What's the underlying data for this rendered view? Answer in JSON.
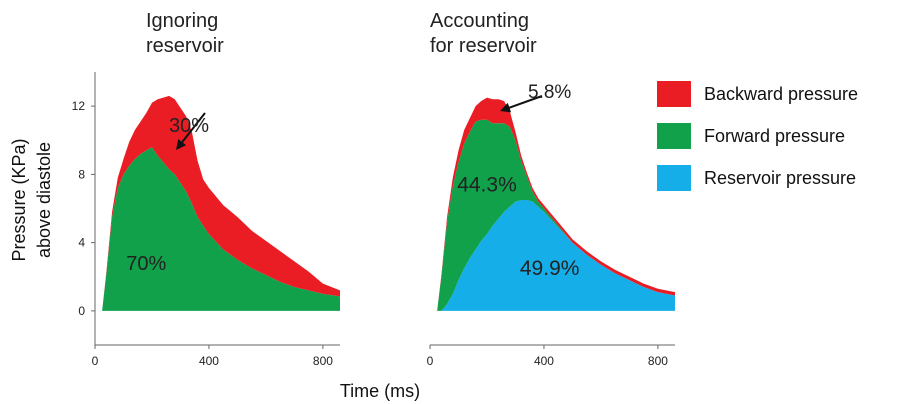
{
  "chart_data": [
    {
      "type": "area",
      "title_lines": [
        "Ignoring",
        "reservoir"
      ],
      "xlabel": "Time (ms)",
      "ylabel_lines": [
        "Pressure (KPa)",
        "above diastole"
      ],
      "xlim": [
        0,
        860
      ],
      "ylim": [
        -2,
        14
      ],
      "xticks": [
        0,
        400,
        800
      ],
      "yticks": [
        0,
        4,
        8,
        12
      ],
      "x": [
        25,
        40,
        60,
        80,
        100,
        120,
        140,
        160,
        180,
        200,
        220,
        240,
        260,
        280,
        300,
        320,
        340,
        360,
        380,
        400,
        450,
        500,
        550,
        600,
        650,
        700,
        750,
        800,
        860
      ],
      "series": [
        {
          "name": "Forward pressure",
          "color": "#10a14a",
          "values": [
            0.0,
            2.2,
            5.5,
            7.2,
            8.0,
            8.5,
            8.9,
            9.2,
            9.4,
            9.6,
            9.1,
            8.7,
            8.3,
            8.0,
            7.5,
            7.0,
            6.3,
            5.5,
            5.0,
            4.5,
            3.6,
            3.0,
            2.5,
            2.1,
            1.7,
            1.4,
            1.2,
            1.0,
            0.85
          ]
        },
        {
          "name": "Backward pressure",
          "color": "#ea1d24",
          "values": [
            0.0,
            0.1,
            0.3,
            0.6,
            0.9,
            1.4,
            1.7,
            1.9,
            2.2,
            2.6,
            3.3,
            3.8,
            4.3,
            4.4,
            4.4,
            4.4,
            4.2,
            3.3,
            2.7,
            2.7,
            2.6,
            2.5,
            2.2,
            2.0,
            1.8,
            1.5,
            1.1,
            0.6,
            0.35
          ]
        }
      ],
      "annotations": [
        {
          "text": "30%",
          "x": 330,
          "y": 10.9
        },
        {
          "text": "70%",
          "x": 180,
          "y": 2.8
        }
      ]
    },
    {
      "type": "area",
      "title_lines": [
        "Accounting",
        "for reservoir"
      ],
      "xlim": [
        0,
        860
      ],
      "ylim": [
        -2,
        14
      ],
      "xticks": [
        0,
        400,
        800
      ],
      "x": [
        25,
        40,
        60,
        80,
        100,
        120,
        140,
        160,
        180,
        200,
        220,
        240,
        260,
        280,
        300,
        320,
        340,
        360,
        380,
        400,
        450,
        500,
        550,
        600,
        650,
        700,
        750,
        800,
        860
      ],
      "series": [
        {
          "name": "Reservoir pressure",
          "color": "#16aee8",
          "values": [
            0.0,
            0.0,
            0.4,
            1.0,
            1.8,
            2.5,
            3.1,
            3.6,
            4.1,
            4.5,
            5.0,
            5.4,
            5.8,
            6.1,
            6.4,
            6.5,
            6.5,
            6.4,
            6.1,
            5.8,
            4.9,
            4.0,
            3.3,
            2.7,
            2.2,
            1.8,
            1.4,
            1.1,
            0.9
          ]
        },
        {
          "name": "Forward pressure",
          "color": "#10a14a",
          "values": [
            0.0,
            2.0,
            4.8,
            6.3,
            6.9,
            7.3,
            7.4,
            7.5,
            7.1,
            6.7,
            6.0,
            5.6,
            5.2,
            4.7,
            3.6,
            2.3,
            1.4,
            0.6,
            0.3,
            0.2,
            0.1,
            0.0,
            0.0,
            0.0,
            0.0,
            0.0,
            0.0,
            0.0,
            0.0
          ]
        },
        {
          "name": "Backward pressure",
          "color": "#ea1d24",
          "values": [
            0.0,
            0.1,
            0.3,
            0.5,
            0.7,
            0.8,
            0.8,
            0.9,
            1.1,
            1.3,
            1.4,
            1.4,
            1.3,
            0.9,
            0.5,
            0.3,
            0.2,
            0.2,
            0.2,
            0.2,
            0.2,
            0.2,
            0.2,
            0.2,
            0.2,
            0.2,
            0.2,
            0.2,
            0.2
          ]
        }
      ],
      "annotations": [
        {
          "text": "5.8%",
          "x": 420,
          "y": 12.9
        },
        {
          "text": "44.3%",
          "x": 200,
          "y": 7.4
        },
        {
          "text": "49.9%",
          "x": 420,
          "y": 2.5
        }
      ]
    }
  ],
  "legend": {
    "items": [
      {
        "label": "Backward pressure",
        "color": "#ea1d24"
      },
      {
        "label": "Forward pressure",
        "color": "#10a14a"
      },
      {
        "label": "Reservoir pressure",
        "color": "#16aee8"
      }
    ]
  }
}
